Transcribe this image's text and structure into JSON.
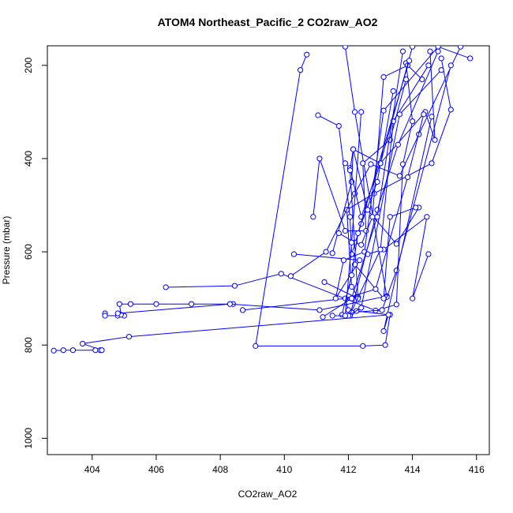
{
  "chart_data": {
    "type": "line",
    "title": "ATOM4 Northeast_Pacific_2 CO2raw_AO2",
    "xlabel": "CO2raw_AO2",
    "ylabel": "Pressure (mbar)",
    "xlim": [
      402.6,
      416.4
    ],
    "ylim": [
      1035,
      158
    ],
    "y_reversed": true,
    "x_ticks": [
      404,
      406,
      408,
      410,
      412,
      414,
      416
    ],
    "y_ticks": [
      200,
      400,
      600,
      800,
      1000
    ],
    "grid": false,
    "marker": "open-circle",
    "color": "#0000ff",
    "series": [
      {
        "x": [
          402.8,
          403.1,
          403.4,
          404.1,
          404.25,
          404.3,
          403.7,
          405.15,
          413.3,
          413.15,
          412.45,
          409.1,
          410.5,
          410.7
        ],
        "y": [
          812,
          811,
          811,
          811,
          811,
          811,
          797,
          782,
          735,
          800,
          802,
          802,
          210,
          177
        ]
      },
      {
        "x": [
          404.4,
          404.4,
          404.8,
          405.0,
          404.9,
          404.85,
          405.2,
          406.0,
          407.1,
          408.4
        ],
        "y": [
          732,
          737,
          737,
          737,
          735,
          712,
          712,
          712,
          712,
          712
        ]
      },
      {
        "x": [
          404.8,
          408.3,
          411.1,
          413.2,
          413.2,
          412.2,
          411.9
        ],
        "y": [
          732,
          712,
          725,
          695,
          697,
          300,
          160
        ]
      },
      {
        "x": [
          406.3,
          408.45,
          409.9,
          412.85,
          413.5,
          413.7,
          414.0,
          413.8
        ],
        "y": [
          676,
          673,
          647,
          726,
          713,
          412,
          320,
          195
        ]
      },
      {
        "x": [
          408.7,
          412.3,
          412.1,
          411.95,
          412.8,
          414.6,
          415.2,
          414.9
        ],
        "y": [
          725,
          697,
          675,
          510,
          475,
          410,
          295,
          185
        ]
      },
      {
        "x": [
          410.2,
          411.3,
          412.2,
          412.7,
          413.6,
          414.2,
          415.5
        ],
        "y": [
          652,
          600,
          475,
          412,
          437,
          348,
          160
        ]
      },
      {
        "x": [
          410.3,
          412.35,
          411.6,
          411.85,
          412.5,
          413.1,
          414.8,
          415.8
        ],
        "y": [
          605,
          618,
          700,
          618,
          600,
          297,
          160,
          185
        ]
      },
      {
        "x": [
          410.9,
          411.1,
          411.9,
          412.55,
          412.45,
          413.3,
          413.8
        ],
        "y": [
          525,
          400,
          555,
          555,
          410,
          360,
          230
        ]
      },
      {
        "x": [
          411.05,
          411.7,
          412.05,
          412.1,
          412.4,
          412.9,
          413.4
        ],
        "y": [
          307,
          330,
          525,
          605,
          540,
          450,
          255
        ]
      },
      {
        "x": [
          411.5,
          412.1,
          412.15,
          412.6,
          413.5,
          414.2
        ],
        "y": [
          603,
          450,
          380,
          510,
          583,
          505
        ]
      },
      {
        "x": [
          411.9,
          412.05,
          412.4,
          413.0,
          414.4,
          414.7,
          414.55
        ],
        "y": [
          410,
          420,
          525,
          410,
          300,
          360,
          170
        ]
      },
      {
        "x": [
          411.7,
          412.2,
          412.4,
          412.75,
          413.1,
          413.85,
          414.3
        ],
        "y": [
          560,
          580,
          585,
          525,
          225,
          200,
          230
        ]
      },
      {
        "x": [
          411.25,
          412.3,
          412.05,
          412.15,
          413.0,
          414.0
        ],
        "y": [
          665,
          700,
          425,
          380,
          410,
          160
        ]
      },
      {
        "x": [
          412.2,
          413.1,
          413.3,
          414.1
        ],
        "y": [
          627,
          700,
          525,
          505
        ]
      },
      {
        "x": [
          412.6,
          413.1,
          414.45,
          414.0,
          414.5
        ],
        "y": [
          605,
          595,
          525,
          700,
          605
        ]
      },
      {
        "x": [
          412.0,
          411.9,
          412.85,
          413.85,
          414.35
        ],
        "y": [
          725,
          700,
          680,
          440,
          305
        ]
      },
      {
        "x": [
          411.8,
          412.1,
          412.3,
          413.9
        ],
        "y": [
          735,
          650,
          560,
          190
        ]
      },
      {
        "x": [
          412.05,
          413.0,
          413.4,
          414.5
        ],
        "y": [
          735,
          595,
          320,
          200
        ]
      },
      {
        "x": [
          412.1,
          413.05,
          413.5,
          415.2
        ],
        "y": [
          730,
          725,
          640,
          200
        ]
      },
      {
        "x": [
          412.25,
          413.25,
          413.1,
          414.6
        ],
        "y": [
          727,
          735,
          770,
          310
        ]
      },
      {
        "x": [
          412.05,
          412.9,
          413.55,
          414.8
        ],
        "y": [
          737,
          510,
          370,
          170
        ]
      },
      {
        "x": [
          412.0,
          412.4,
          413.6,
          414.9
        ],
        "y": [
          737,
          720,
          305,
          210
        ]
      },
      {
        "x": [
          411.2,
          412.1,
          412.9,
          413.7
        ],
        "y": [
          740,
          700,
          525,
          170
        ]
      },
      {
        "x": [
          411.5,
          411.9,
          412.1,
          412.4
        ],
        "y": [
          737,
          737,
          580,
          300
        ]
      }
    ]
  }
}
